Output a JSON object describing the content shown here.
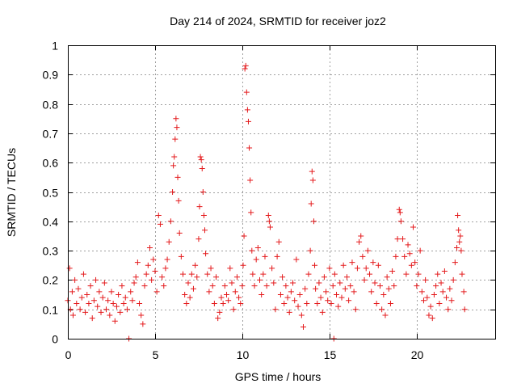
{
  "chart_data": {
    "type": "scatter",
    "title": "Day 214 of 2024, SRMTID for receiver joz2",
    "xlabel": "GPS time / hours",
    "ylabel": "SRMTID / TECUs",
    "xlim": [
      0,
      24.5
    ],
    "ylim": [
      0,
      1
    ],
    "grid": true,
    "marker": "plus",
    "x_ticks": [
      0,
      5,
      10,
      15,
      20
    ],
    "x_tick_labels": [
      "0",
      "5",
      "10",
      "15",
      "20"
    ],
    "y_ticks": [
      0,
      0.1,
      0.2,
      0.3,
      0.4,
      0.5,
      0.6,
      0.7,
      0.8,
      0.9,
      1
    ],
    "y_tick_labels": [
      "0",
      "0.1",
      "0.2",
      "0.3",
      "0.4",
      "0.5",
      "0.6",
      "0.7",
      "0.8",
      "0.9",
      "1"
    ],
    "series": [
      {
        "name": "SRMTID",
        "color": "#e41a1c",
        "points": [
          [
            0.0,
            0.13
          ],
          [
            0.1,
            0.24
          ],
          [
            0.15,
            0.1
          ],
          [
            0.25,
            0.16
          ],
          [
            0.3,
            0.08
          ],
          [
            0.4,
            0.2
          ],
          [
            0.5,
            0.12
          ],
          [
            0.6,
            0.17
          ],
          [
            0.7,
            0.1
          ],
          [
            0.8,
            0.14
          ],
          [
            0.9,
            0.22
          ],
          [
            1.0,
            0.09
          ],
          [
            1.1,
            0.15
          ],
          [
            1.2,
            0.12
          ],
          [
            1.3,
            0.18
          ],
          [
            1.4,
            0.07
          ],
          [
            1.5,
            0.13
          ],
          [
            1.6,
            0.2
          ],
          [
            1.7,
            0.11
          ],
          [
            1.8,
            0.16
          ],
          [
            1.9,
            0.09
          ],
          [
            2.0,
            0.14
          ],
          [
            2.1,
            0.19
          ],
          [
            2.2,
            0.1
          ],
          [
            2.3,
            0.13
          ],
          [
            2.4,
            0.08
          ],
          [
            2.5,
            0.16
          ],
          [
            2.6,
            0.12
          ],
          [
            2.7,
            0.06
          ],
          [
            2.8,
            0.11
          ],
          [
            2.9,
            0.15
          ],
          [
            3.0,
            0.09
          ],
          [
            3.1,
            0.18
          ],
          [
            3.2,
            0.12
          ],
          [
            3.3,
            0.14
          ],
          [
            3.4,
            0.1
          ],
          [
            3.5,
            0.0
          ],
          [
            3.6,
            0.16
          ],
          [
            3.7,
            0.13
          ],
          [
            3.8,
            0.19
          ],
          [
            3.9,
            0.21
          ],
          [
            4.0,
            0.26
          ],
          [
            4.1,
            0.12
          ],
          [
            4.2,
            0.08
          ],
          [
            4.3,
            0.05
          ],
          [
            4.4,
            0.18
          ],
          [
            4.5,
            0.22
          ],
          [
            4.6,
            0.25
          ],
          [
            4.7,
            0.31
          ],
          [
            4.8,
            0.2
          ],
          [
            4.9,
            0.27
          ],
          [
            5.0,
            0.23
          ],
          [
            5.1,
            0.16
          ],
          [
            5.2,
            0.42
          ],
          [
            5.3,
            0.39
          ],
          [
            5.4,
            0.21
          ],
          [
            5.5,
            0.18
          ],
          [
            5.6,
            0.24
          ],
          [
            5.7,
            0.27
          ],
          [
            5.8,
            0.33
          ],
          [
            5.9,
            0.4
          ],
          [
            6.0,
            0.5
          ],
          [
            6.05,
            0.59
          ],
          [
            6.1,
            0.62
          ],
          [
            6.15,
            0.68
          ],
          [
            6.2,
            0.75
          ],
          [
            6.25,
            0.72
          ],
          [
            6.3,
            0.55
          ],
          [
            6.35,
            0.47
          ],
          [
            6.4,
            0.36
          ],
          [
            6.5,
            0.28
          ],
          [
            6.6,
            0.22
          ],
          [
            6.7,
            0.15
          ],
          [
            6.8,
            0.12
          ],
          [
            6.9,
            0.19
          ],
          [
            7.0,
            0.14
          ],
          [
            7.1,
            0.22
          ],
          [
            7.2,
            0.17
          ],
          [
            7.3,
            0.25
          ],
          [
            7.4,
            0.21
          ],
          [
            7.5,
            0.34
          ],
          [
            7.55,
            0.45
          ],
          [
            7.6,
            0.62
          ],
          [
            7.65,
            0.61
          ],
          [
            7.7,
            0.58
          ],
          [
            7.75,
            0.5
          ],
          [
            7.8,
            0.42
          ],
          [
            7.85,
            0.37
          ],
          [
            7.9,
            0.29
          ],
          [
            8.0,
            0.22
          ],
          [
            8.1,
            0.16
          ],
          [
            8.2,
            0.24
          ],
          [
            8.3,
            0.18
          ],
          [
            8.4,
            0.12
          ],
          [
            8.5,
            0.21
          ],
          [
            8.6,
            0.07
          ],
          [
            8.7,
            0.09
          ],
          [
            8.8,
            0.14
          ],
          [
            8.9,
            0.12
          ],
          [
            9.0,
            0.18
          ],
          [
            9.1,
            0.15
          ],
          [
            9.2,
            0.13
          ],
          [
            9.3,
            0.24
          ],
          [
            9.4,
            0.19
          ],
          [
            9.5,
            0.1
          ],
          [
            9.6,
            0.16
          ],
          [
            9.7,
            0.21
          ],
          [
            9.8,
            0.14
          ],
          [
            9.9,
            0.12
          ],
          [
            10.0,
            0.18
          ],
          [
            10.05,
            0.25
          ],
          [
            10.1,
            0.35
          ],
          [
            10.15,
            0.92
          ],
          [
            10.2,
            0.93
          ],
          [
            10.25,
            0.84
          ],
          [
            10.3,
            0.78
          ],
          [
            10.35,
            0.74
          ],
          [
            10.4,
            0.65
          ],
          [
            10.45,
            0.54
          ],
          [
            10.5,
            0.43
          ],
          [
            10.55,
            0.3
          ],
          [
            10.6,
            0.22
          ],
          [
            10.7,
            0.18
          ],
          [
            10.8,
            0.27
          ],
          [
            10.9,
            0.31
          ],
          [
            11.0,
            0.2
          ],
          [
            11.1,
            0.15
          ],
          [
            11.2,
            0.22
          ],
          [
            11.3,
            0.28
          ],
          [
            11.4,
            0.18
          ],
          [
            11.5,
            0.42
          ],
          [
            11.55,
            0.4
          ],
          [
            11.6,
            0.38
          ],
          [
            11.7,
            0.24
          ],
          [
            11.8,
            0.19
          ],
          [
            11.9,
            0.1
          ],
          [
            12.0,
            0.28
          ],
          [
            12.1,
            0.33
          ],
          [
            12.2,
            0.15
          ],
          [
            12.3,
            0.21
          ],
          [
            12.4,
            0.12
          ],
          [
            12.5,
            0.18
          ],
          [
            12.6,
            0.14
          ],
          [
            12.7,
            0.09
          ],
          [
            12.8,
            0.16
          ],
          [
            12.9,
            0.19
          ],
          [
            13.0,
            0.13
          ],
          [
            13.1,
            0.27
          ],
          [
            13.2,
            0.11
          ],
          [
            13.3,
            0.15
          ],
          [
            13.4,
            0.08
          ],
          [
            13.5,
            0.04
          ],
          [
            13.6,
            0.17
          ],
          [
            13.7,
            0.12
          ],
          [
            13.8,
            0.22
          ],
          [
            13.9,
            0.3
          ],
          [
            13.95,
            0.46
          ],
          [
            14.0,
            0.57
          ],
          [
            14.05,
            0.54
          ],
          [
            14.1,
            0.4
          ],
          [
            14.15,
            0.25
          ],
          [
            14.2,
            0.17
          ],
          [
            14.3,
            0.12
          ],
          [
            14.4,
            0.19
          ],
          [
            14.5,
            0.14
          ],
          [
            14.6,
            0.09
          ],
          [
            14.7,
            0.21
          ],
          [
            14.8,
            0.16
          ],
          [
            14.9,
            0.13
          ],
          [
            15.0,
            0.24
          ],
          [
            15.1,
            0.12
          ],
          [
            15.2,
            0.18
          ],
          [
            15.25,
            0.0
          ],
          [
            15.3,
            0.22
          ],
          [
            15.4,
            0.15
          ],
          [
            15.5,
            0.11
          ],
          [
            15.6,
            0.19
          ],
          [
            15.7,
            0.14
          ],
          [
            15.8,
            0.25
          ],
          [
            15.9,
            0.17
          ],
          [
            16.0,
            0.21
          ],
          [
            16.1,
            0.13
          ],
          [
            16.2,
            0.18
          ],
          [
            16.3,
            0.26
          ],
          [
            16.4,
            0.16
          ],
          [
            16.5,
            0.1
          ],
          [
            16.6,
            0.24
          ],
          [
            16.7,
            0.33
          ],
          [
            16.8,
            0.35
          ],
          [
            16.9,
            0.28
          ],
          [
            17.0,
            0.2
          ],
          [
            17.1,
            0.24
          ],
          [
            17.2,
            0.3
          ],
          [
            17.3,
            0.22
          ],
          [
            17.4,
            0.16
          ],
          [
            17.5,
            0.26
          ],
          [
            17.6,
            0.19
          ],
          [
            17.7,
            0.12
          ],
          [
            17.8,
            0.25
          ],
          [
            17.9,
            0.18
          ],
          [
            18.0,
            0.1
          ],
          [
            18.1,
            0.15
          ],
          [
            18.2,
            0.08
          ],
          [
            18.3,
            0.21
          ],
          [
            18.4,
            0.17
          ],
          [
            18.5,
            0.12
          ],
          [
            18.6,
            0.23
          ],
          [
            18.7,
            0.18
          ],
          [
            18.8,
            0.28
          ],
          [
            18.9,
            0.34
          ],
          [
            19.0,
            0.44
          ],
          [
            19.05,
            0.43
          ],
          [
            19.1,
            0.4
          ],
          [
            19.2,
            0.34
          ],
          [
            19.3,
            0.28
          ],
          [
            19.4,
            0.22
          ],
          [
            19.5,
            0.32
          ],
          [
            19.6,
            0.29
          ],
          [
            19.7,
            0.25
          ],
          [
            19.8,
            0.38
          ],
          [
            19.9,
            0.26
          ],
          [
            20.0,
            0.18
          ],
          [
            20.1,
            0.22
          ],
          [
            20.2,
            0.3
          ],
          [
            20.3,
            0.16
          ],
          [
            20.4,
            0.13
          ],
          [
            20.5,
            0.2
          ],
          [
            20.6,
            0.14
          ],
          [
            20.7,
            0.08
          ],
          [
            20.8,
            0.11
          ],
          [
            20.9,
            0.07
          ],
          [
            21.0,
            0.15
          ],
          [
            21.1,
            0.18
          ],
          [
            21.2,
            0.22
          ],
          [
            21.3,
            0.12
          ],
          [
            21.4,
            0.19
          ],
          [
            21.5,
            0.16
          ],
          [
            21.6,
            0.23
          ],
          [
            21.7,
            0.14
          ],
          [
            21.8,
            0.1
          ],
          [
            21.9,
            0.17
          ],
          [
            22.0,
            0.13
          ],
          [
            22.1,
            0.2
          ],
          [
            22.2,
            0.26
          ],
          [
            22.3,
            0.31
          ],
          [
            22.35,
            0.42
          ],
          [
            22.4,
            0.37
          ],
          [
            22.45,
            0.33
          ],
          [
            22.5,
            0.35
          ],
          [
            22.55,
            0.3
          ],
          [
            22.6,
            0.22
          ],
          [
            22.7,
            0.16
          ],
          [
            22.75,
            0.1
          ]
        ]
      }
    ]
  }
}
